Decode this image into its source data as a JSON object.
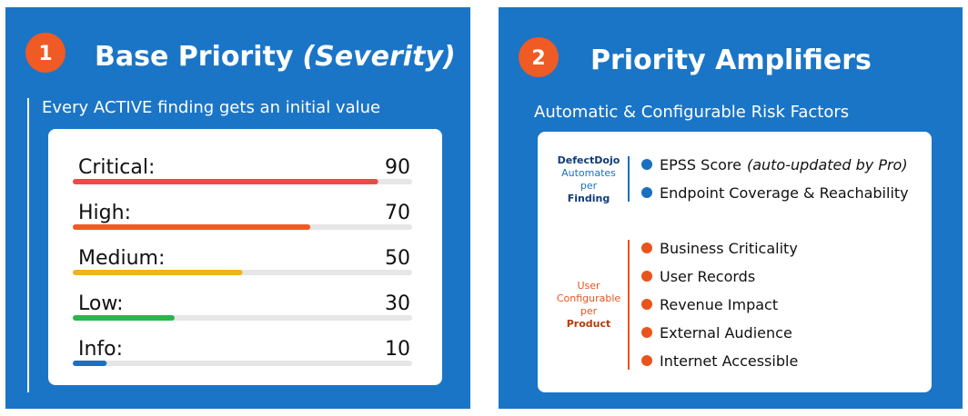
{
  "panels": [
    {
      "number": "1",
      "title": "Base Priority",
      "title_note": "(Severity)",
      "subtitle": "Every ACTIVE finding gets an initial value"
    },
    {
      "number": "2",
      "title": "Priority Amplifiers",
      "subtitle": "Automatic & Configurable Risk Factors",
      "groups": [
        {
          "color": "#1b6fc0",
          "label": [
            {
              "text": "DefectDojo",
              "bold": true
            },
            {
              "text": "Automates",
              "bold": false
            },
            {
              "text": "per",
              "bold": false
            },
            {
              "text": "Finding",
              "bold": true
            }
          ],
          "items": [
            {
              "text": "EPSS Score",
              "note": "(auto-updated by Pro)"
            },
            {
              "text": "Endpoint Coverage & Reachability"
            }
          ]
        },
        {
          "color": "#e8541c",
          "label": [
            {
              "text": "User",
              "bold": false
            },
            {
              "text": "Configurable",
              "bold": false
            },
            {
              "text": "per",
              "bold": false
            },
            {
              "text": "Product",
              "bold": true
            }
          ],
          "items": [
            {
              "text": "Business Criticality"
            },
            {
              "text": "User Records"
            },
            {
              "text": "Revenue Impact"
            },
            {
              "text": "External Audience"
            },
            {
              "text": "Internet Accessible"
            }
          ]
        }
      ]
    }
  ],
  "chart_data": {
    "type": "bar",
    "orientation": "horizontal",
    "categories": [
      "Critical:",
      "High:",
      "Medium:",
      "Low:",
      "Info:"
    ],
    "values": [
      90,
      70,
      50,
      30,
      10
    ],
    "colors": [
      "#f04848",
      "#f15a24",
      "#f0b41a",
      "#2bb54a",
      "#1f6fc0"
    ],
    "xlim": [
      0,
      100
    ]
  }
}
